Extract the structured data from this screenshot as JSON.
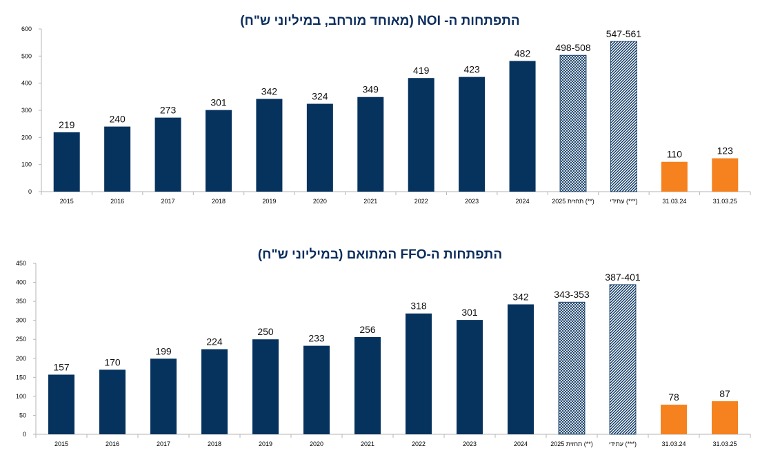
{
  "chart_data": [
    {
      "type": "bar",
      "title": "התפתחות ה- NOI (מאוחד מורחב, במיליוני ש\"ח)",
      "xlabel": "",
      "ylabel": "",
      "ylim": [
        0,
        600
      ],
      "yticks": [
        "0",
        "100",
        "200",
        "300",
        "400",
        "500",
        "600"
      ],
      "categories": [
        "2015",
        "2016",
        "2017",
        "2018",
        "2019",
        "2020",
        "2021",
        "2022",
        "2023",
        "2024",
        "תחזית 2025 (**)",
        "עתידי (***)",
        "31.03.24",
        "31.03.25"
      ],
      "values": [
        219,
        240,
        273,
        301,
        342,
        324,
        349,
        419,
        423,
        482,
        503,
        554,
        110,
        123
      ],
      "value_labels": [
        "219",
        "240",
        "273",
        "301",
        "342",
        "324",
        "349",
        "419",
        "423",
        "482",
        "498-508",
        "547-561",
        "110",
        "123"
      ],
      "bar_styles": [
        "solid",
        "solid",
        "solid",
        "solid",
        "solid",
        "solid",
        "solid",
        "solid",
        "solid",
        "solid",
        "crosshatch",
        "diagonal",
        "orange",
        "orange"
      ],
      "grid": false
    },
    {
      "type": "bar",
      "title": "התפתחות ה-FFO המתואם  (במיליוני ש\"ח)",
      "xlabel": "",
      "ylabel": "",
      "ylim": [
        0,
        450
      ],
      "yticks": [
        "0",
        "50",
        "100",
        "150",
        "200",
        "250",
        "300",
        "350",
        "400",
        "450"
      ],
      "categories": [
        "2015",
        "2016",
        "2017",
        "2018",
        "2019",
        "2020",
        "2021",
        "2022",
        "2023",
        "2024",
        "תחזית 2025 (**)",
        "עתידי (***)",
        "31.03.24",
        "31.03.25"
      ],
      "values": [
        157,
        170,
        199,
        224,
        250,
        233,
        256,
        318,
        301,
        342,
        348,
        394,
        78,
        87
      ],
      "value_labels": [
        "157",
        "170",
        "199",
        "224",
        "250",
        "233",
        "256",
        "318",
        "301",
        "342",
        "343-353",
        "387-401",
        "78",
        "87"
      ],
      "bar_styles": [
        "solid",
        "solid",
        "solid",
        "solid",
        "solid",
        "solid",
        "solid",
        "solid",
        "solid",
        "solid",
        "crosshatch",
        "diagonal",
        "orange",
        "orange"
      ],
      "grid": false
    }
  ],
  "colors": {
    "navy": "#06325e",
    "orange": "#f5821f",
    "title": "#0b2d5c",
    "axis": "#b5b5b5"
  }
}
